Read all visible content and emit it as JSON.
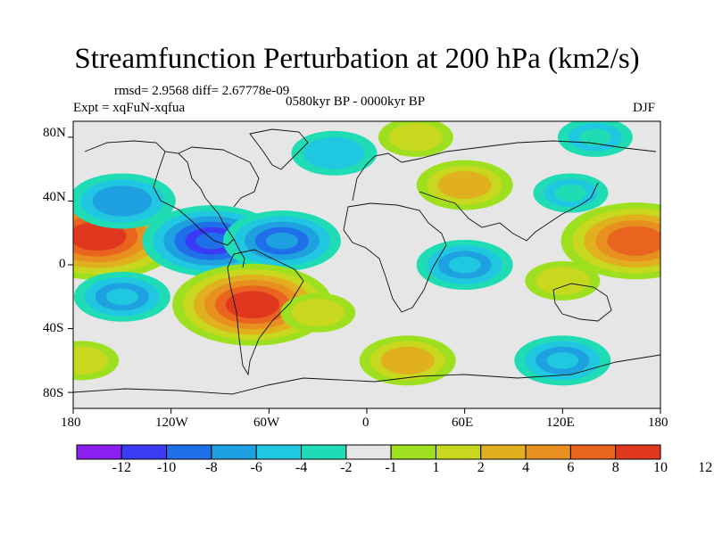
{
  "title": "Streamfunction Perturbation at 200 hPa (km2/s)",
  "stats_line": "rmsd= 2.9568 diff= 2.67778e-09",
  "period": "0580kyr BP - 0000kyr BP",
  "experiment": "Expt = xqFuN-xqfua",
  "season": "DJF",
  "lat_labels": [
    "80N",
    "40N",
    "0",
    "40S",
    "80S"
  ],
  "lon_labels": [
    "180",
    "120W",
    "60W",
    "0",
    "60E",
    "120E",
    "180"
  ],
  "colorbar": {
    "labels": [
      "-12",
      "-10",
      "-8",
      "-6",
      "-4",
      "-2",
      "-1",
      "1",
      "2",
      "4",
      "6",
      "8",
      "10",
      "12"
    ],
    "colors": [
      "#8a1ff0",
      "#3b3bf5",
      "#1f6fe8",
      "#1fa0e0",
      "#1fc8e0",
      "#1fdcb4",
      "#e6e6e6",
      "#9ee01f",
      "#c8d81f",
      "#e0b01f",
      "#e8901f",
      "#e8641f",
      "#e0381f"
    ]
  },
  "chart_data": {
    "type": "contour-map",
    "variable": "Streamfunction Perturbation at 200 hPa",
    "units": "km2/s",
    "levels": [
      -12,
      -10,
      -8,
      -6,
      -4,
      -2,
      -1,
      1,
      2,
      4,
      6,
      8,
      10,
      12
    ],
    "lon_range": [
      -180,
      180
    ],
    "lat_range": [
      -90,
      90
    ],
    "anomalies": [
      {
        "lon": -165,
        "lat": 18,
        "value": 11
      },
      {
        "lon": 165,
        "lat": 15,
        "value": 9
      },
      {
        "lon": -95,
        "lat": 15,
        "value": -8
      },
      {
        "lon": -52,
        "lat": 15,
        "value": -6
      },
      {
        "lon": -70,
        "lat": -25,
        "value": 10
      },
      {
        "lon": -150,
        "lat": 40,
        "value": -5
      },
      {
        "lon": -30,
        "lat": -30,
        "value": 2
      },
      {
        "lon": 25,
        "lat": -60,
        "value": 4
      },
      {
        "lon": 60,
        "lat": 50,
        "value": 4
      },
      {
        "lon": 125,
        "lat": 45,
        "value": -2
      },
      {
        "lon": 60,
        "lat": 0,
        "value": -4
      },
      {
        "lon": 120,
        "lat": -10,
        "value": 2
      },
      {
        "lon": 120,
        "lat": -60,
        "value": -4
      },
      {
        "lon": -150,
        "lat": -20,
        "value": -4
      },
      {
        "lon": -20,
        "lat": 70,
        "value": -3
      },
      {
        "lon": 30,
        "lat": 80,
        "value": 2
      },
      {
        "lon": -175,
        "lat": -60,
        "value": 2
      },
      {
        "lon": 140,
        "lat": 80,
        "value": -2
      }
    ]
  }
}
